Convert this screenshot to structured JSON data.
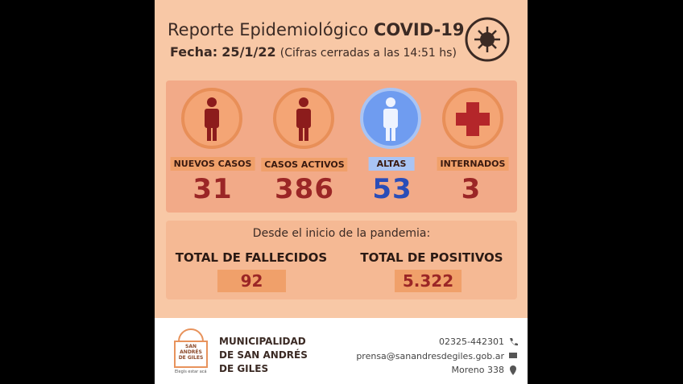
{
  "header": {
    "title": "Reporte Epidemiológico",
    "title_bold": "COVID-19",
    "date_label": "Fecha:",
    "date": "25/1/22",
    "note": "(Cifras cerradas a las 14:51 hs)"
  },
  "stats": [
    {
      "label": "NUEVOS CASOS",
      "value": "31"
    },
    {
      "label": "CASOS ACTIVOS",
      "value": "386"
    },
    {
      "label": "ALTAS",
      "value": "53"
    },
    {
      "label": "INTERNADOS",
      "value": "3"
    }
  ],
  "totals": {
    "intro": "Desde el inicio de la pandemia:",
    "items": [
      {
        "label": "TOTAL DE FALLECIDOS",
        "value": "92"
      },
      {
        "label": "TOTAL DE POSITIVOS",
        "value": "5.322"
      }
    ]
  },
  "footer": {
    "logo": "SAN ANDRÉS DE GILES",
    "slogan": "Elegís estar acá",
    "org": [
      "MUNICIPALIDAD",
      "DE SAN ANDRÉS",
      "DE GILES"
    ],
    "phone": "02325-442301",
    "email": "prensa@sanandresdegiles.gob.ar",
    "address": "Moreno 338"
  }
}
